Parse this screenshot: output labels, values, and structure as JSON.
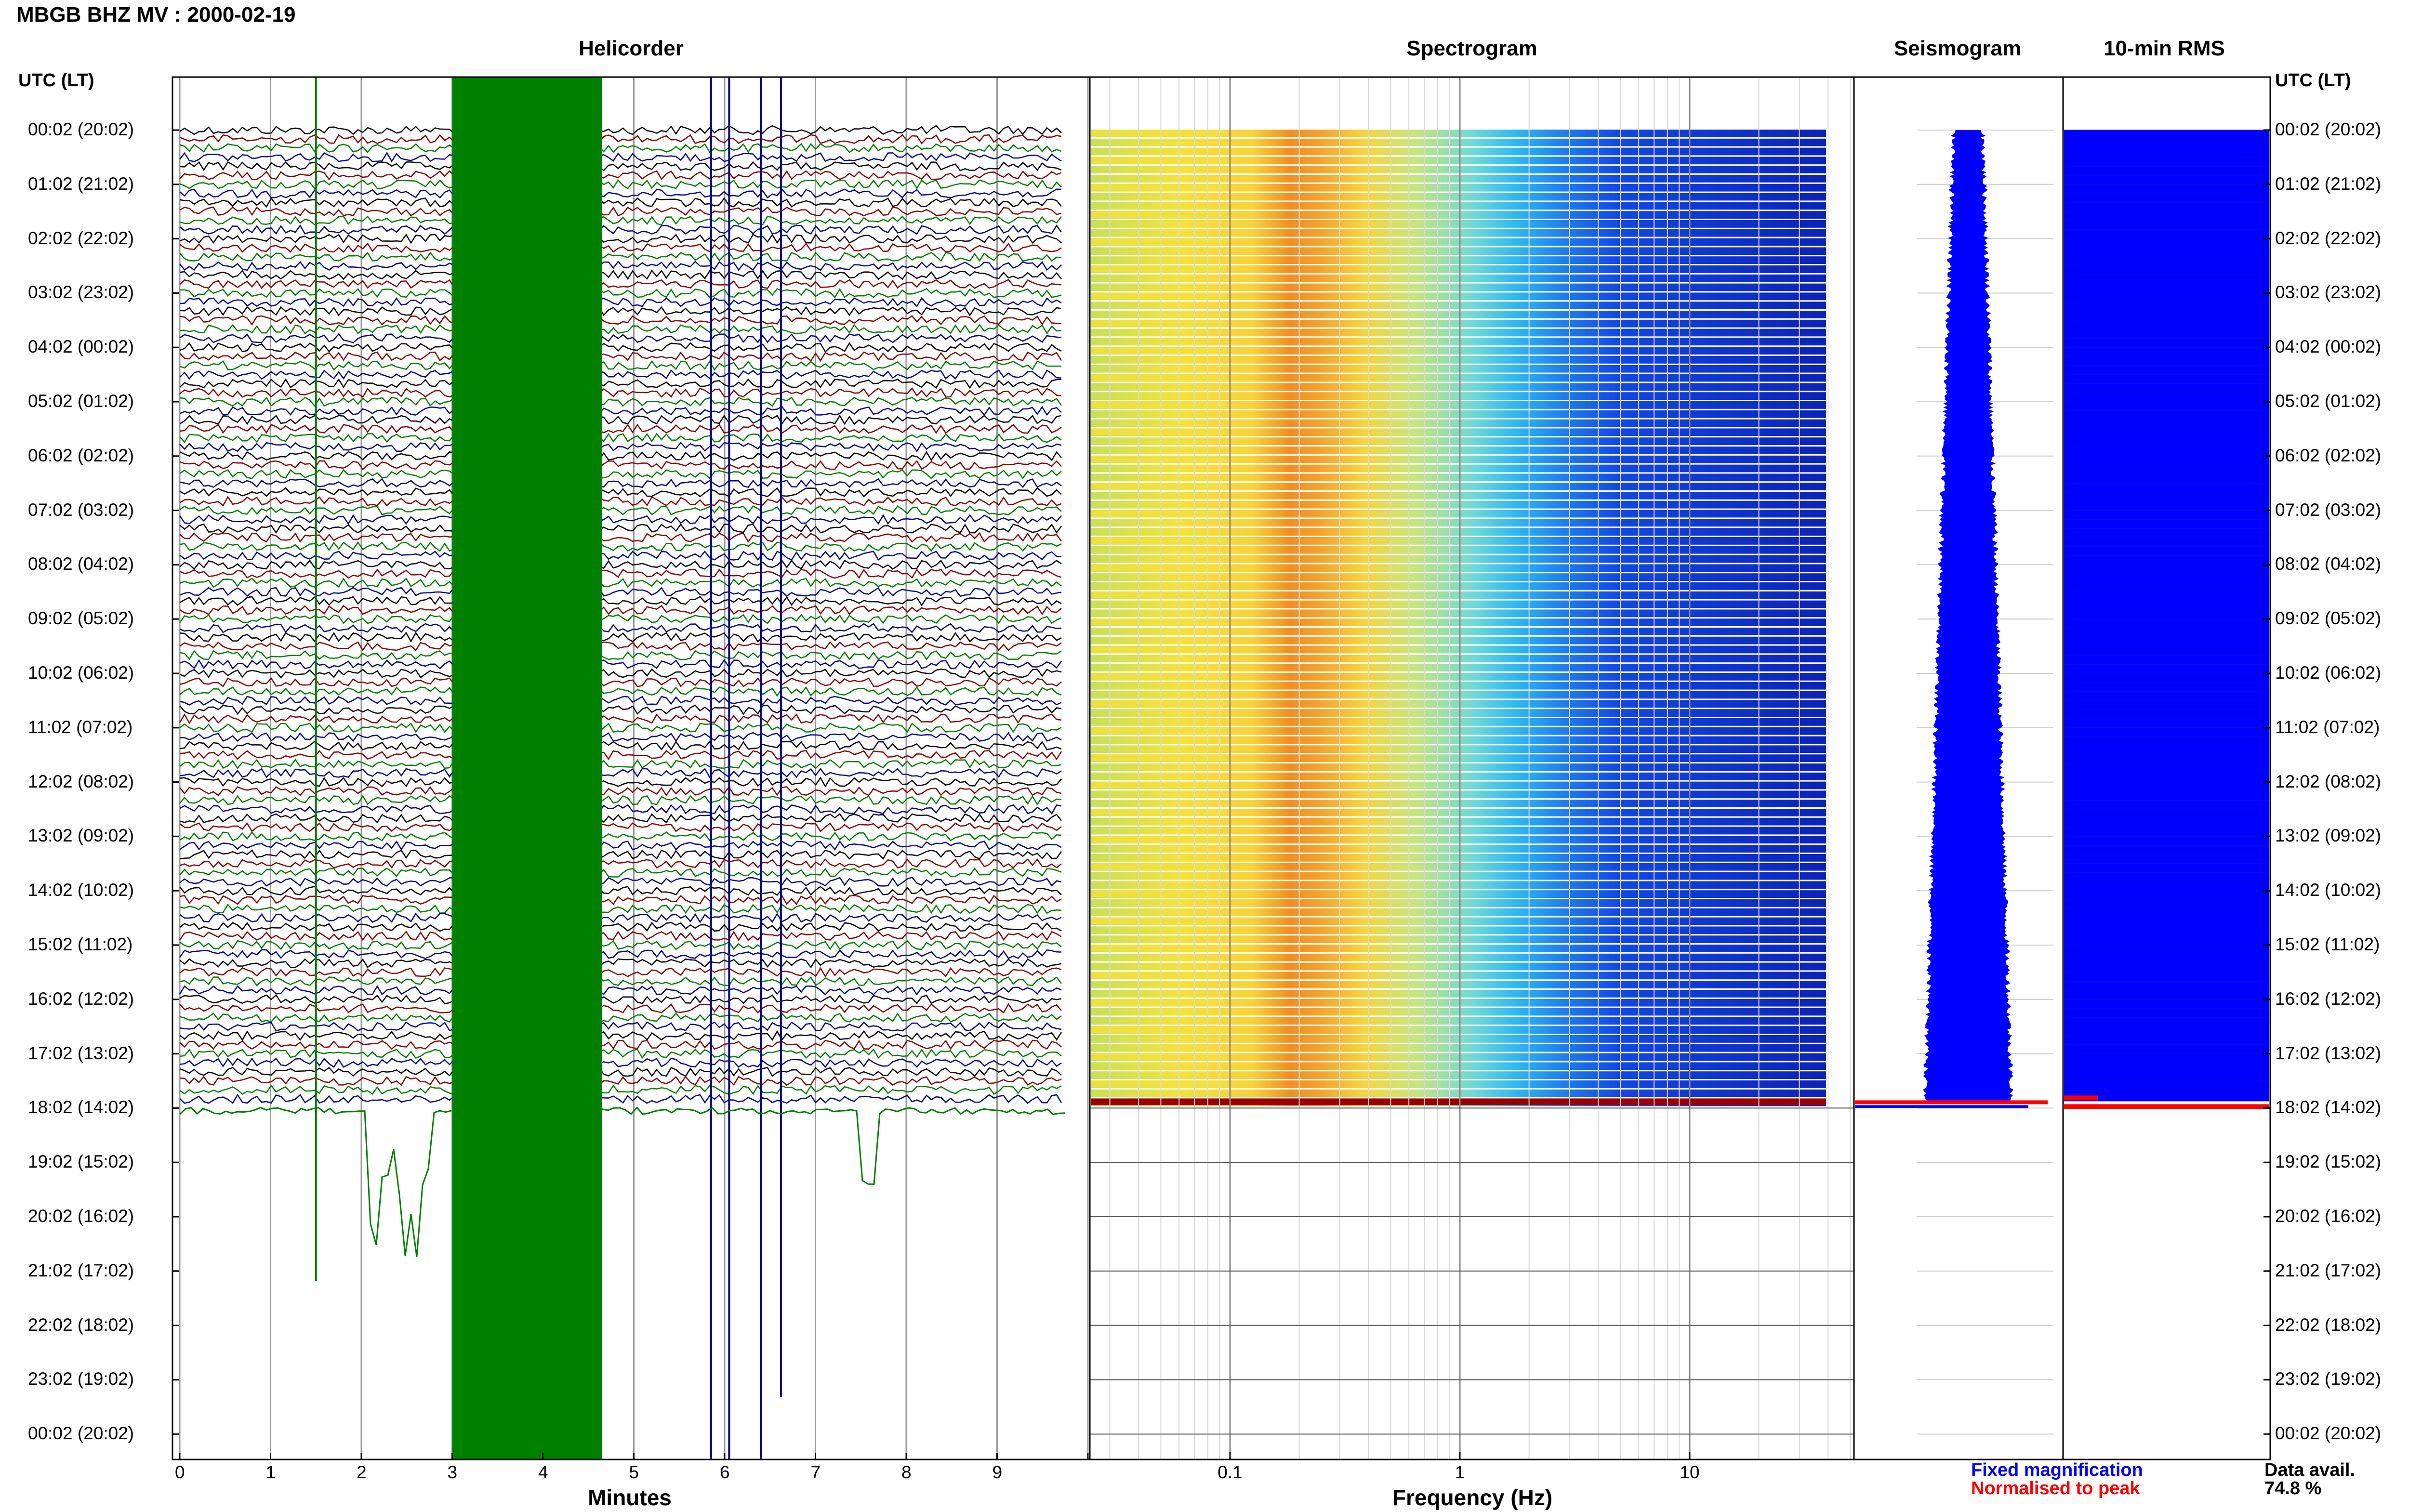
{
  "header": {
    "title": "MBGB BHZ MV : 2000-02-19"
  },
  "panels": {
    "helicorder": "Helicorder",
    "spectrogram": "Spectrogram",
    "seismogram": "Seismogram",
    "rms": "10-min RMS"
  },
  "time_axis": {
    "heading": "UTC (LT)",
    "rows": [
      "00:02 (20:02)",
      "01:02 (21:02)",
      "02:02 (22:02)",
      "03:02 (23:02)",
      "04:02 (00:02)",
      "05:02 (01:02)",
      "06:02 (02:02)",
      "07:02 (03:02)",
      "08:02 (04:02)",
      "09:02 (05:02)",
      "10:02 (06:02)",
      "11:02 (07:02)",
      "12:02 (08:02)",
      "13:02 (09:02)",
      "14:02 (10:02)",
      "15:02 (11:02)",
      "16:02 (12:02)",
      "17:02 (13:02)",
      "18:02 (14:02)",
      "19:02 (15:02)",
      "20:02 (16:02)",
      "21:02 (17:02)",
      "22:02 (18:02)",
      "23:02 (19:02)",
      "00:02 (20:02)"
    ]
  },
  "helicorder_axis": {
    "label": "Minutes",
    "ticks": [
      "0",
      "1",
      "2",
      "3",
      "4",
      "5",
      "6",
      "7",
      "8",
      "9"
    ]
  },
  "spectrogram_axis": {
    "label": "Frequency (Hz)",
    "ticks": [
      "0.1",
      "1",
      "10"
    ]
  },
  "legend": {
    "fixed": "Fixed magnification",
    "normalised": "Normalised to peak"
  },
  "availability": {
    "label": "Data avail.",
    "value": "74.8 %"
  },
  "colors": {
    "trace_cycle": [
      "#000000",
      "#8b0000",
      "#008000",
      "#00008b"
    ],
    "clipped_block": "#008000",
    "seismogram_fixed": "#0000ff",
    "seismogram_peak": "#ff0000",
    "rms_bar": "#0000ff",
    "rms_peak": "#ff0000",
    "spectrogram_colormap": "jet"
  },
  "chart_data": [
    {
      "type": "line",
      "title": "Helicorder",
      "xlabel": "Minutes",
      "xlim": [
        0,
        10
      ],
      "x_ticks": [
        0,
        1,
        2,
        3,
        4,
        5,
        6,
        7,
        8,
        9
      ],
      "rows_per_hour": 6,
      "hours_with_data": 18,
      "clipped_interval_min": [
        3.0,
        4.65
      ]
    },
    {
      "type": "heatmap",
      "title": "Spectrogram",
      "xlabel": "Frequency (Hz)",
      "xscale": "log",
      "xlim": [
        0.02,
        40
      ],
      "x_ticks": [
        0.1,
        1,
        10
      ],
      "dominant_band_hz": [
        0.18,
        0.45
      ]
    },
    {
      "type": "line",
      "title": "Seismogram",
      "legend": [
        "Fixed magnification",
        "Normalised to peak"
      ]
    },
    {
      "type": "bar",
      "title": "10-min RMS",
      "data_availability_percent": 74.8
    }
  ]
}
